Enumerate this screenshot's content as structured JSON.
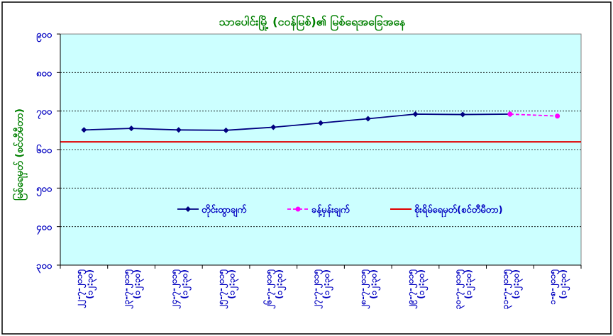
{
  "chart_data": {
    "type": "line",
    "title": "သာပေါင်းမြို့ (ငဝန်မြစ်)၏ မြစ်ရေအခြေအနေ",
    "xlabel": "",
    "ylabel": "မြစ်ရေမှတ် (စင်တီမီတာ)",
    "ylim": [
      300,
      900
    ],
    "yticks": [
      "၉၀၀",
      "၈၀၀",
      "၇၀၀",
      "၆၀၀",
      "၅၀၀",
      "၄၀၀",
      "၃၀၀"
    ],
    "ytick_values": [
      900,
      800,
      700,
      600,
      500,
      400,
      300
    ],
    "categories": [
      [
        "၂၂-၇-၂၀၁၅",
        "(၁၂:၃၀)"
      ],
      [
        "၂၃-၇-၂၀၁၅",
        "(၁၂:၃၀)"
      ],
      [
        "၂၄-၇-၂၀၁၅",
        "(၁၂:၃၀)"
      ],
      [
        "၂၅-၇-၂၀၁၅",
        "(၁၂:၃၀)"
      ],
      [
        "၂၆-၇-၂၀၁၅",
        "(၁၂:၃၀)"
      ],
      [
        "၂၇-၇-၂၀၁၅",
        "(၁၂:၃၀)"
      ],
      [
        "၂၈-၇-၂၀၁၅",
        "(၁၂:၃၀)"
      ],
      [
        "၂၉-၇-၂၀၁၅",
        "(၁၂:၃၀)"
      ],
      [
        "၃၀-၇-၂၀၁၅",
        "(၁၂:၃၀)"
      ],
      [
        "၃၁-၇-၂၀၁၅",
        "(၁၂:၃၀)"
      ],
      [
        "၁-၈-၂၀၁၅",
        "(၁၂:၃၀)"
      ]
    ],
    "series": [
      {
        "name": "တိုင်းထွာချက်",
        "color": "#000080",
        "style": "solid",
        "marker": "diamond",
        "values": [
          651,
          655,
          651,
          650,
          658,
          669,
          680,
          692,
          691,
          692,
          null
        ]
      },
      {
        "name": "ခန့်မှန်းချက်",
        "color": "#ff00ff",
        "style": "dashed",
        "marker": "circle",
        "values": [
          null,
          null,
          null,
          null,
          null,
          null,
          null,
          null,
          null,
          692,
          687
        ]
      }
    ],
    "reference_lines": [
      {
        "name": "စိုးရိမ်ရေမှတ်(စင်တီမီတာ)",
        "value": 620,
        "color": "#e00000"
      }
    ],
    "grid": true,
    "legend_position": "center",
    "colors": {
      "plot_background": "#ccffff",
      "title": "#008000",
      "ylabel": "#008000",
      "ticks": "#0000c0",
      "legend_text": "#0000c0"
    }
  }
}
